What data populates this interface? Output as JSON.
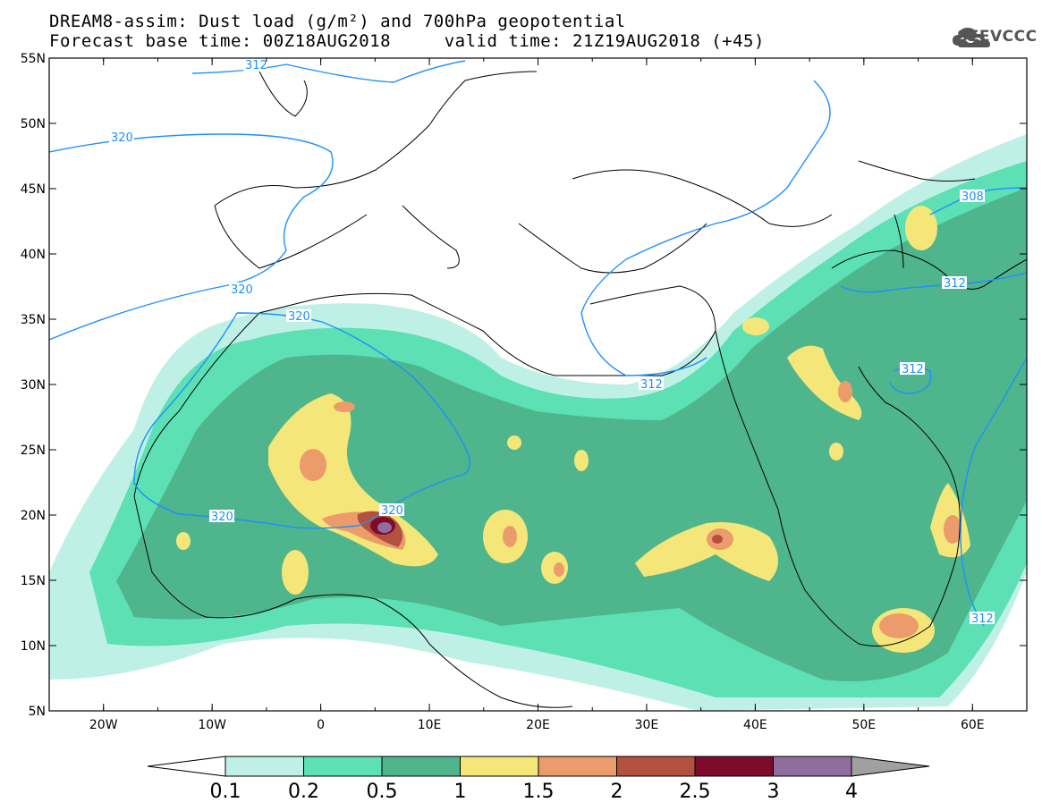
{
  "header": {
    "title_line1": "DREAM8-assim: Dust load (g/m²) and 700hPa geopotential",
    "title_line2": "Forecast base time: 00Z18AUG2018     valid time: 21Z19AUG2018 (+45)",
    "logo_text": "SEEVCCC",
    "logo_icon": "cloud-logo-icon"
  },
  "map": {
    "lon_ticks": [
      "20W",
      "10W",
      "0",
      "10E",
      "20E",
      "30E",
      "40E",
      "50E",
      "60E"
    ],
    "lat_ticks": [
      "55N",
      "50N",
      "45N",
      "40N",
      "35N",
      "30N",
      "25N",
      "20N",
      "15N",
      "10N",
      "5N"
    ],
    "lon_range": [
      -25,
      65
    ],
    "lat_range": [
      5,
      55
    ],
    "contour_labels": [
      "312",
      "320",
      "320",
      "320",
      "320",
      "320",
      "312",
      "312",
      "312",
      "308",
      "312"
    ],
    "colors": {
      "geopotential_line": "#1e90ff",
      "coastline": "#000000"
    }
  },
  "colorbar": {
    "labels": [
      "0.1",
      "0.2",
      "0.5",
      "1",
      "1.5",
      "2",
      "2.5",
      "3",
      "4"
    ],
    "colors": [
      "#bff0e6",
      "#5ce0b4",
      "#4fb58c",
      "#f5e679",
      "#ec9b6b",
      "#b4503f",
      "#7e0b2c",
      "#8f6e9e",
      "#a0a0a0"
    ],
    "under_color": "#ffffff",
    "over_color": "#a0a0a0"
  }
}
